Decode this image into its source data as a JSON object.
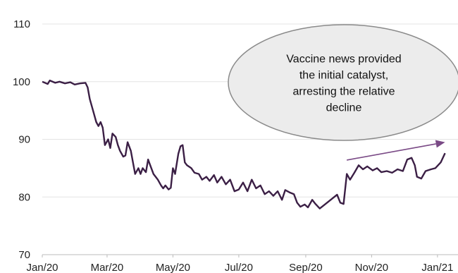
{
  "chart_data": {
    "type": "line",
    "title": "",
    "xlabel": "",
    "ylabel": "",
    "ylim": [
      70,
      110
    ],
    "y_ticks": [
      "70",
      "80",
      "90",
      "100",
      "110"
    ],
    "x_ticks": [
      "Jan/20",
      "Mar/20",
      "May/20",
      "Jul/20",
      "Sep/20",
      "Nov/20",
      "Jan/21"
    ],
    "grid": "horizontal",
    "colors": {
      "line": "#3b1f45",
      "arrow": "#7a4a86",
      "grid": "#e4e4e4",
      "ellipse_fill": "#ececec",
      "ellipse_stroke": "#8a8a8a"
    },
    "series": [
      {
        "values": [
          [
            "2020-01-01",
            100.0
          ],
          [
            "2020-01-06",
            99.6
          ],
          [
            "2020-01-08",
            100.2
          ],
          [
            "2020-01-13",
            99.8
          ],
          [
            "2020-01-17",
            100.0
          ],
          [
            "2020-01-22",
            99.7
          ],
          [
            "2020-01-27",
            99.9
          ],
          [
            "2020-01-31",
            99.5
          ],
          [
            "2020-02-05",
            99.7
          ],
          [
            "2020-02-10",
            99.8
          ],
          [
            "2020-02-12",
            99.0
          ],
          [
            "2020-02-14",
            97.0
          ],
          [
            "2020-02-17",
            95.0
          ],
          [
            "2020-02-20",
            93.0
          ],
          [
            "2020-02-22",
            92.3
          ],
          [
            "2020-02-24",
            93.0
          ],
          [
            "2020-02-26",
            92.0
          ],
          [
            "2020-02-28",
            89.0
          ],
          [
            "2020-03-02",
            90.0
          ],
          [
            "2020-03-04",
            88.5
          ],
          [
            "2020-03-06",
            91.0
          ],
          [
            "2020-03-09",
            90.4
          ],
          [
            "2020-03-11",
            89.0
          ],
          [
            "2020-03-13",
            88.0
          ],
          [
            "2020-03-16",
            87.0
          ],
          [
            "2020-03-18",
            87.2
          ],
          [
            "2020-03-20",
            89.5
          ],
          [
            "2020-03-23",
            88.0
          ],
          [
            "2020-03-25",
            86.0
          ],
          [
            "2020-03-27",
            84.0
          ],
          [
            "2020-03-30",
            85.0
          ],
          [
            "2020-04-01",
            84.0
          ],
          [
            "2020-04-03",
            85.0
          ],
          [
            "2020-04-06",
            84.3
          ],
          [
            "2020-04-08",
            86.5
          ],
          [
            "2020-04-10",
            85.5
          ],
          [
            "2020-04-13",
            84.0
          ],
          [
            "2020-04-15",
            83.5
          ],
          [
            "2020-04-17",
            83.0
          ],
          [
            "2020-04-20",
            82.0
          ],
          [
            "2020-04-22",
            81.5
          ],
          [
            "2020-04-24",
            82.0
          ],
          [
            "2020-04-27",
            81.3
          ],
          [
            "2020-04-29",
            81.6
          ],
          [
            "2020-05-01",
            85.0
          ],
          [
            "2020-05-03",
            84.0
          ],
          [
            "2020-05-06",
            87.5
          ],
          [
            "2020-05-08",
            88.8
          ],
          [
            "2020-05-10",
            89.0
          ],
          [
            "2020-05-12",
            86.0
          ],
          [
            "2020-05-14",
            85.5
          ],
          [
            "2020-05-18",
            85.0
          ],
          [
            "2020-05-21",
            84.2
          ],
          [
            "2020-05-25",
            84.0
          ],
          [
            "2020-05-28",
            83.0
          ],
          [
            "2020-06-01",
            83.5
          ],
          [
            "2020-06-04",
            82.8
          ],
          [
            "2020-06-08",
            83.8
          ],
          [
            "2020-06-11",
            82.5
          ],
          [
            "2020-06-15",
            83.5
          ],
          [
            "2020-06-19",
            82.2
          ],
          [
            "2020-06-23",
            83.0
          ],
          [
            "2020-06-27",
            81.0
          ],
          [
            "2020-07-01",
            81.3
          ],
          [
            "2020-07-05",
            82.5
          ],
          [
            "2020-07-09",
            81.0
          ],
          [
            "2020-07-13",
            83.0
          ],
          [
            "2020-07-17",
            81.5
          ],
          [
            "2020-07-21",
            82.0
          ],
          [
            "2020-07-25",
            80.5
          ],
          [
            "2020-07-29",
            81.0
          ],
          [
            "2020-08-02",
            80.2
          ],
          [
            "2020-08-06",
            81.0
          ],
          [
            "2020-08-10",
            79.5
          ],
          [
            "2020-08-13",
            81.2
          ],
          [
            "2020-08-17",
            80.8
          ],
          [
            "2020-08-21",
            80.5
          ],
          [
            "2020-08-24",
            79.0
          ],
          [
            "2020-08-27",
            78.3
          ],
          [
            "2020-08-31",
            78.7
          ],
          [
            "2020-09-03",
            78.2
          ],
          [
            "2020-09-07",
            79.5
          ],
          [
            "2020-09-10",
            78.8
          ],
          [
            "2020-09-14",
            78.0
          ],
          [
            "2020-09-18",
            78.6
          ],
          [
            "2020-09-22",
            79.2
          ],
          [
            "2020-09-26",
            79.8
          ],
          [
            "2020-09-30",
            80.4
          ],
          [
            "2020-10-03",
            79.0
          ],
          [
            "2020-10-06",
            78.8
          ],
          [
            "2020-10-09",
            84.0
          ],
          [
            "2020-10-12",
            83.0
          ],
          [
            "2020-10-16",
            84.2
          ],
          [
            "2020-10-20",
            85.5
          ],
          [
            "2020-10-24",
            84.8
          ],
          [
            "2020-10-28",
            85.3
          ],
          [
            "2020-11-02",
            84.6
          ],
          [
            "2020-11-06",
            85.0
          ],
          [
            "2020-11-10",
            84.3
          ],
          [
            "2020-11-15",
            84.5
          ],
          [
            "2020-11-20",
            84.2
          ],
          [
            "2020-11-25",
            84.8
          ],
          [
            "2020-11-30",
            84.5
          ],
          [
            "2020-12-04",
            86.5
          ],
          [
            "2020-12-08",
            86.8
          ],
          [
            "2020-12-11",
            85.5
          ],
          [
            "2020-12-13",
            83.5
          ],
          [
            "2020-12-17",
            83.2
          ],
          [
            "2020-12-21",
            84.5
          ],
          [
            "2020-12-26",
            84.8
          ],
          [
            "2020-12-30",
            85.0
          ],
          [
            "2021-01-04",
            86.0
          ],
          [
            "2021-01-08",
            87.6
          ]
        ]
      }
    ],
    "annotation": {
      "lines": [
        "Vaccine news provided",
        "the initial catalyst,",
        "arresting the relative",
        "decline"
      ]
    },
    "trend_arrow": {
      "from": [
        "2020-10-09",
        86.4
      ],
      "to": [
        "2021-01-08",
        89.5
      ]
    }
  }
}
